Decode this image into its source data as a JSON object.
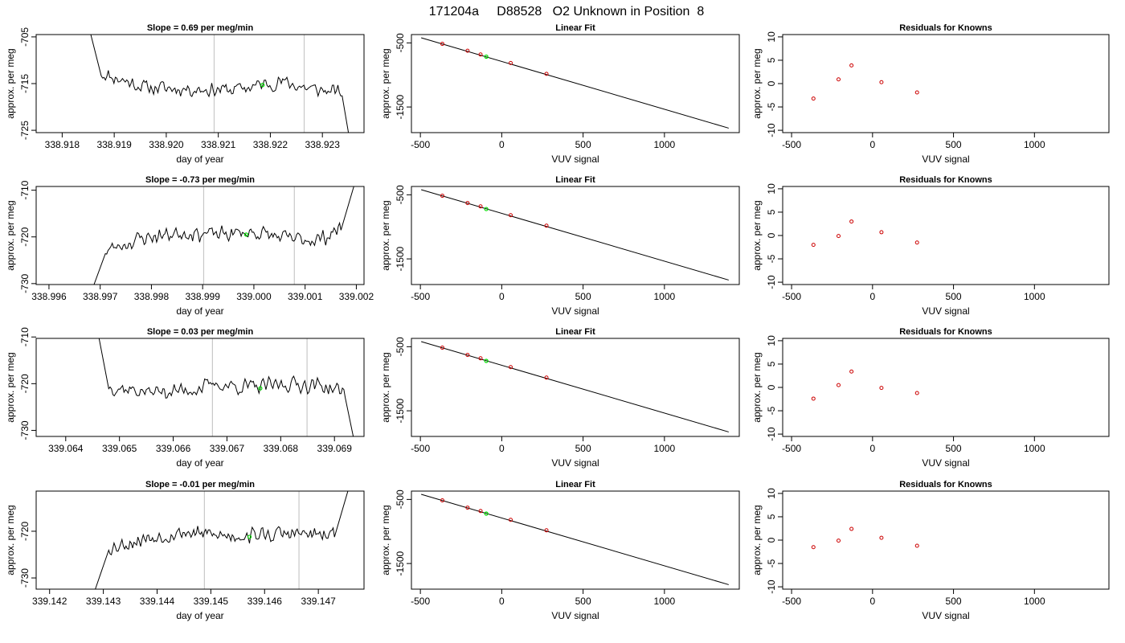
{
  "figure_title": "171204a     D88528   O2 Unknown in Position  8",
  "chart_data": [
    {
      "type": "line",
      "row": 1,
      "title": "Slope =  0.69  per meg/min",
      "xlabel": "day of year",
      "ylabel": "approx. per meg",
      "xlim": [
        338.9175,
        338.9238
      ],
      "ylim": [
        -725.5,
        -704.5
      ],
      "xticks": [
        338.918,
        338.919,
        338.92,
        338.921,
        338.922,
        338.923
      ],
      "xtick_labels": [
        "338.918",
        "338.919",
        "338.920",
        "338.921",
        "338.922",
        "338.923"
      ],
      "yticks": [
        -705,
        -715,
        -725
      ],
      "ytick_labels": [
        "-705",
        "-715",
        "-725"
      ],
      "vlines": [
        338.92092,
        338.92265
      ],
      "highlight_point": [
        338.92185,
        -715.3
      ],
      "trace_start": [
        338.91855,
        -704.5
      ],
      "trace_end": [
        338.9235,
        -725.5
      ],
      "trace_window": [
        338.91875,
        338.92338
      ],
      "trace_anchors": [
        [
          338.91875,
          -712.8
        ],
        [
          338.9196,
          -715.8
        ],
        [
          338.9205,
          -716.2
        ],
        [
          338.9213,
          -716.3
        ],
        [
          338.9222,
          -714.6
        ],
        [
          338.9228,
          -716.2
        ],
        [
          338.92338,
          -717.0
        ]
      ],
      "noise_amp": 1.2,
      "seed": 11
    },
    {
      "type": "line",
      "row": 2,
      "title": "Slope =  -0.73  per meg/min",
      "xlabel": "day of year",
      "ylabel": "approx. per meg",
      "xlim": [
        338.99575,
        339.00215
      ],
      "ylim": [
        -730.2,
        -709.2
      ],
      "xticks": [
        338.996,
        338.997,
        338.998,
        338.999,
        339.0,
        339.001,
        339.002
      ],
      "xtick_labels": [
        "338.996",
        "338.997",
        "338.998",
        "338.999",
        "339.000",
        "339.001",
        "339.002"
      ],
      "yticks": [
        -710,
        -720,
        -730
      ],
      "ytick_labels": [
        "-710",
        "-720",
        "-730"
      ],
      "vlines": [
        338.99902,
        339.00079
      ],
      "highlight_point": [
        338.99985,
        -719.5
      ],
      "trace_start": [
        338.99688,
        -730.2
      ],
      "trace_end": [
        339.00195,
        -709.2
      ],
      "trace_window": [
        338.9971,
        339.0017
      ],
      "trace_anchors": [
        [
          338.9971,
          -723.0
        ],
        [
          338.9978,
          -720.3
        ],
        [
          338.9986,
          -719.0
        ],
        [
          338.9993,
          -719.5
        ],
        [
          339.0,
          -719.0
        ],
        [
          339.0007,
          -720.5
        ],
        [
          339.0013,
          -720.5
        ],
        [
          339.0017,
          -718.0
        ]
      ],
      "noise_amp": 1.3,
      "seed": 23
    },
    {
      "type": "line",
      "row": 3,
      "title": "Slope =  0.03  per meg/min",
      "xlabel": "day of year",
      "ylabel": "approx. per meg",
      "xlim": [
        339.06345,
        339.06955
      ],
      "ylim": [
        -731.3,
        -710.3
      ],
      "xticks": [
        339.064,
        339.065,
        339.066,
        339.067,
        339.068,
        339.069
      ],
      "xtick_labels": [
        "339.064",
        "339.065",
        "339.066",
        "339.067",
        "339.068",
        "339.069"
      ],
      "yticks": [
        -710,
        -720,
        -730
      ],
      "ytick_labels": [
        "-710",
        "-720",
        "-730"
      ],
      "vlines": [
        339.06673,
        339.06849
      ],
      "highlight_point": [
        339.06762,
        -721.0
      ],
      "trace_start": [
        339.06462,
        -710.3
      ],
      "trace_end": [
        339.06935,
        -731.3
      ],
      "trace_window": [
        339.0648,
        339.0692
      ],
      "trace_anchors": [
        [
          339.0648,
          -720.5
        ],
        [
          339.0655,
          -721.8
        ],
        [
          339.0662,
          -721.5
        ],
        [
          339.0668,
          -720.2
        ],
        [
          339.0675,
          -720.8
        ],
        [
          339.0682,
          -720.0
        ],
        [
          339.0688,
          -720.5
        ],
        [
          339.0692,
          -722.0
        ]
      ],
      "noise_amp": 1.3,
      "seed": 37
    },
    {
      "type": "line",
      "row": 4,
      "title": "Slope =  -0.01  per meg/min",
      "xlabel": "day of year",
      "ylabel": "approx. per meg",
      "xlim": [
        339.14175,
        339.14785
      ],
      "ylim": [
        -732.4,
        -711.4
      ],
      "xticks": [
        339.142,
        339.143,
        339.144,
        339.145,
        339.146,
        339.147
      ],
      "xtick_labels": [
        "339.142",
        "339.143",
        "339.144",
        "339.145",
        "339.146",
        "339.147"
      ],
      "yticks": [
        -720,
        -730
      ],
      "ytick_labels": [
        "-720",
        "-730"
      ],
      "vlines": [
        339.14488,
        339.14664
      ],
      "highlight_point": [
        339.14572,
        -721.2
      ],
      "trace_start": [
        339.14285,
        -732.4
      ],
      "trace_end": [
        339.14755,
        -711.4
      ],
      "trace_window": [
        339.1431,
        339.1473
      ],
      "trace_anchors": [
        [
          339.1431,
          -723.5
        ],
        [
          339.1438,
          -721.5
        ],
        [
          339.1445,
          -720.2
        ],
        [
          339.1452,
          -721.0
        ],
        [
          339.1459,
          -720.8
        ],
        [
          339.1466,
          -720.5
        ],
        [
          339.1473,
          -721.2
        ]
      ],
      "noise_amp": 1.3,
      "seed": 53
    },
    {
      "type": "scatter",
      "row": 1,
      "title": "Linear Fit",
      "xlabel": "VUV signal",
      "ylabel": "approx. per meg",
      "xlim": [
        -555,
        1460
      ],
      "ylim": [
        -1900,
        -370
      ],
      "xticks": [
        -500,
        0,
        500,
        1000
      ],
      "xtick_labels": [
        "-500",
        "0",
        "500",
        "1000"
      ],
      "yticks": [
        -500,
        -1500
      ],
      "ytick_labels": [
        "-500",
        "-1500"
      ],
      "fit_line": [
        [
          -495,
          -420
        ],
        [
          1395,
          -1830
        ]
      ],
      "points": [
        [
          -365,
          -515
        ],
        [
          -210,
          -622
        ],
        [
          -130,
          -681
        ],
        [
          55,
          -814
        ],
        [
          275,
          -983
        ]
      ],
      "highlight_point": [
        -95,
        -715
      ]
    },
    {
      "type": "scatter",
      "row": 2,
      "title": "Linear Fit",
      "xlabel": "VUV signal",
      "ylabel": "approx. per meg",
      "xlim": [
        -555,
        1460
      ],
      "ylim": [
        -1900,
        -370
      ],
      "xticks": [
        -500,
        0,
        500,
        1000
      ],
      "xtick_labels": [
        "-500",
        "0",
        "500",
        "1000"
      ],
      "yticks": [
        -500,
        -1500
      ],
      "ytick_labels": [
        "-500",
        "-1500"
      ],
      "fit_line": [
        [
          -495,
          -420
        ],
        [
          1395,
          -1830
        ]
      ],
      "points": [
        [
          -365,
          -515
        ],
        [
          -210,
          -628
        ],
        [
          -130,
          -681
        ],
        [
          55,
          -818
        ],
        [
          275,
          -982
        ]
      ],
      "highlight_point": [
        -95,
        -722
      ]
    },
    {
      "type": "scatter",
      "row": 3,
      "title": "Linear Fit",
      "xlabel": "VUV signal",
      "ylabel": "approx. per meg",
      "xlim": [
        -555,
        1460
      ],
      "ylim": [
        -1900,
        -370
      ],
      "xticks": [
        -500,
        0,
        500,
        1000
      ],
      "xtick_labels": [
        "-500",
        "0",
        "500",
        "1000"
      ],
      "yticks": [
        -500,
        -1500
      ],
      "ytick_labels": [
        "-500",
        "-1500"
      ],
      "fit_line": [
        [
          -495,
          -420
        ],
        [
          1395,
          -1830
        ]
      ],
      "points": [
        [
          -365,
          -515
        ],
        [
          -210,
          -628
        ],
        [
          -130,
          -681
        ],
        [
          55,
          -818
        ],
        [
          275,
          -982
        ]
      ],
      "highlight_point": [
        -95,
        -721
      ]
    },
    {
      "type": "scatter",
      "row": 4,
      "title": "Linear Fit",
      "xlabel": "VUV signal",
      "ylabel": "approx. per meg",
      "xlim": [
        -555,
        1460
      ],
      "ylim": [
        -1900,
        -370
      ],
      "xticks": [
        -500,
        0,
        500,
        1000
      ],
      "xtick_labels": [
        "-500",
        "0",
        "500",
        "1000"
      ],
      "yticks": [
        -500,
        -1500
      ],
      "ytick_labels": [
        "-500",
        "-1500"
      ],
      "fit_line": [
        [
          -495,
          -420
        ],
        [
          1395,
          -1830
        ]
      ],
      "points": [
        [
          -365,
          -515
        ],
        [
          -210,
          -628
        ],
        [
          -130,
          -681
        ],
        [
          55,
          -818
        ],
        [
          275,
          -982
        ]
      ],
      "highlight_point": [
        -95,
        -721
      ]
    },
    {
      "type": "scatter",
      "row": 1,
      "title": "Residuals for Knowns",
      "xlabel": "VUV signal",
      "ylabel": "approx. per meg",
      "xlim": [
        -555,
        1460
      ],
      "ylim": [
        -10.5,
        10.5
      ],
      "xticks": [
        -500,
        0,
        500,
        1000
      ],
      "xtick_labels": [
        "-500",
        "0",
        "500",
        "1000"
      ],
      "yticks": [
        10,
        5,
        0,
        -5,
        -10
      ],
      "ytick_labels": [
        "10",
        "5",
        "0",
        "-5",
        "-10"
      ],
      "points": [
        [
          -365,
          -3.2
        ],
        [
          -210,
          0.9
        ],
        [
          -130,
          3.9
        ],
        [
          55,
          0.3
        ],
        [
          275,
          -1.9
        ]
      ]
    },
    {
      "type": "scatter",
      "row": 2,
      "title": "Residuals for Knowns",
      "xlabel": "VUV signal",
      "ylabel": "approx. per meg",
      "xlim": [
        -555,
        1460
      ],
      "ylim": [
        -10.5,
        10.5
      ],
      "xticks": [
        -500,
        0,
        500,
        1000
      ],
      "xtick_labels": [
        "-500",
        "0",
        "500",
        "1000"
      ],
      "yticks": [
        10,
        5,
        0,
        -5,
        -10
      ],
      "ytick_labels": [
        "10",
        "5",
        "0",
        "-5",
        "-10"
      ],
      "points": [
        [
          -365,
          -2.0
        ],
        [
          -210,
          -0.1
        ],
        [
          -130,
          3.0
        ],
        [
          55,
          0.7
        ],
        [
          275,
          -1.5
        ]
      ]
    },
    {
      "type": "scatter",
      "row": 3,
      "title": "Residuals for Knowns",
      "xlabel": "VUV signal",
      "ylabel": "approx. per meg",
      "xlim": [
        -555,
        1460
      ],
      "ylim": [
        -10.5,
        10.5
      ],
      "xticks": [
        -500,
        0,
        500,
        1000
      ],
      "xtick_labels": [
        "-500",
        "0",
        "500",
        "1000"
      ],
      "yticks": [
        10,
        5,
        0,
        -5,
        -10
      ],
      "ytick_labels": [
        "10",
        "5",
        "0",
        "-5",
        "-10"
      ],
      "points": [
        [
          -365,
          -2.4
        ],
        [
          -210,
          0.5
        ],
        [
          -130,
          3.4
        ],
        [
          55,
          -0.1
        ],
        [
          275,
          -1.2
        ]
      ]
    },
    {
      "type": "scatter",
      "row": 4,
      "title": "Residuals for Knowns",
      "xlabel": "VUV signal",
      "ylabel": "approx. per meg",
      "xlim": [
        -555,
        1460
      ],
      "ylim": [
        -10.5,
        10.5
      ],
      "xticks": [
        -500,
        0,
        500,
        1000
      ],
      "xtick_labels": [
        "-500",
        "0",
        "500",
        "1000"
      ],
      "yticks": [
        10,
        5,
        0,
        -5,
        -10
      ],
      "ytick_labels": [
        "10",
        "5",
        "0",
        "-5",
        "-10"
      ],
      "points": [
        [
          -365,
          -1.5
        ],
        [
          -210,
          -0.1
        ],
        [
          -130,
          2.4
        ],
        [
          55,
          0.5
        ],
        [
          275,
          -1.2
        ]
      ]
    }
  ],
  "colors": {
    "trace": "#000000",
    "fit_line": "#000000",
    "known_points": "#cc0000",
    "unknown_point": "#00dd00",
    "vlines": "#c8c8c8",
    "axes": "#000000"
  }
}
